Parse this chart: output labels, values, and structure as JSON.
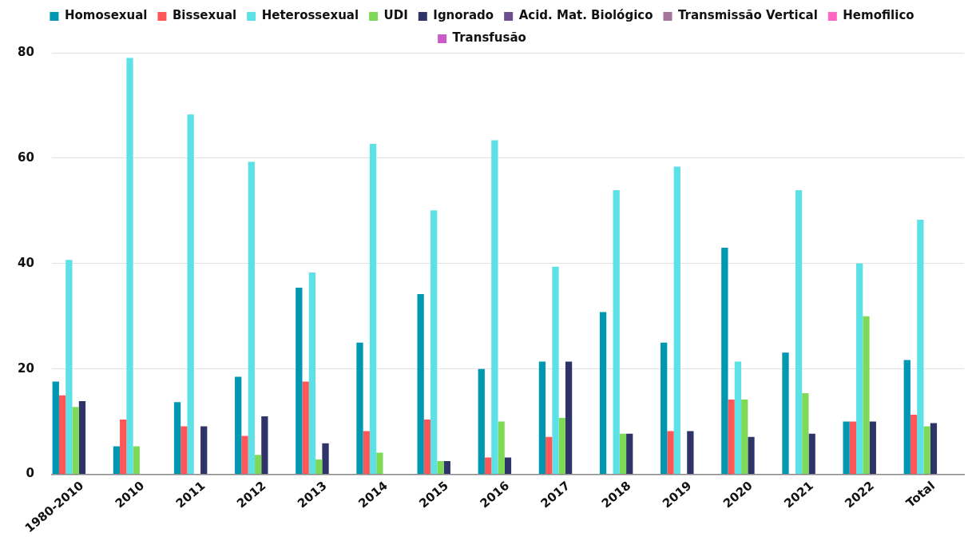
{
  "chart_data": {
    "type": "bar",
    "categories": [
      "1980-2010",
      "2010",
      "2011",
      "2012",
      "2013",
      "2014",
      "2015",
      "2016",
      "2017",
      "2018",
      "2019",
      "2020",
      "2021",
      "2022",
      "Total"
    ],
    "series": [
      {
        "name": "Homosexual",
        "color": "#0097b2",
        "values": [
          17.6,
          5.3,
          13.7,
          18.5,
          35.4,
          25.0,
          34.2,
          20.0,
          21.4,
          30.8,
          25.0,
          43.0,
          23.1,
          10.0,
          21.7
        ]
      },
      {
        "name": "Bissexual",
        "color": "#ff5757",
        "values": [
          15.0,
          10.4,
          9.1,
          7.3,
          17.6,
          8.2,
          10.4,
          3.2,
          7.1,
          0,
          8.2,
          14.2,
          0,
          10.0,
          11.3
        ]
      },
      {
        "name": "Heterossexual",
        "color": "#5ce1e6",
        "values": [
          40.7,
          79.0,
          68.3,
          59.3,
          38.3,
          62.7,
          50.1,
          63.4,
          39.4,
          53.9,
          58.4,
          21.4,
          53.9,
          40.0,
          48.3
        ]
      },
      {
        "name": "UDI",
        "color": "#7ed957",
        "values": [
          12.8,
          5.3,
          0,
          3.7,
          2.8,
          4.1,
          2.5,
          10.0,
          10.7,
          7.7,
          0,
          14.2,
          15.4,
          30.0,
          9.1
        ]
      },
      {
        "name": "Ignorado",
        "color": "#2f3468",
        "values": [
          13.9,
          0,
          9.1,
          11.0,
          5.9,
          0,
          2.5,
          3.2,
          21.4,
          7.7,
          8.2,
          7.1,
          7.7,
          10.0,
          9.7
        ]
      },
      {
        "name": "Acid. Mat. Biológico",
        "color": "#6c4f8c",
        "values": [
          0,
          0,
          0,
          0,
          0,
          0,
          0,
          0,
          0,
          0,
          0,
          0,
          0,
          0,
          0
        ]
      },
      {
        "name": "Transmissão Vertical",
        "color": "#a6739b",
        "values": [
          0,
          0,
          0,
          0,
          0,
          0,
          0,
          0,
          0,
          0,
          0,
          0,
          0,
          0,
          0
        ]
      },
      {
        "name": "Hemofilico",
        "color": "#ff66c4",
        "values": [
          0,
          0,
          0,
          0,
          0,
          0,
          0,
          0,
          0,
          0,
          0,
          0,
          0,
          0,
          0
        ]
      },
      {
        "name": "Transfusão",
        "color": "#cb5bc8",
        "values": [
          0,
          0,
          0,
          0,
          0,
          0,
          0,
          0,
          0,
          0,
          0,
          0,
          0,
          0,
          0
        ]
      }
    ],
    "ylim": [
      0,
      80
    ],
    "yticks": [
      0,
      20,
      40,
      60,
      80
    ],
    "grid": "y",
    "legend": "top"
  }
}
